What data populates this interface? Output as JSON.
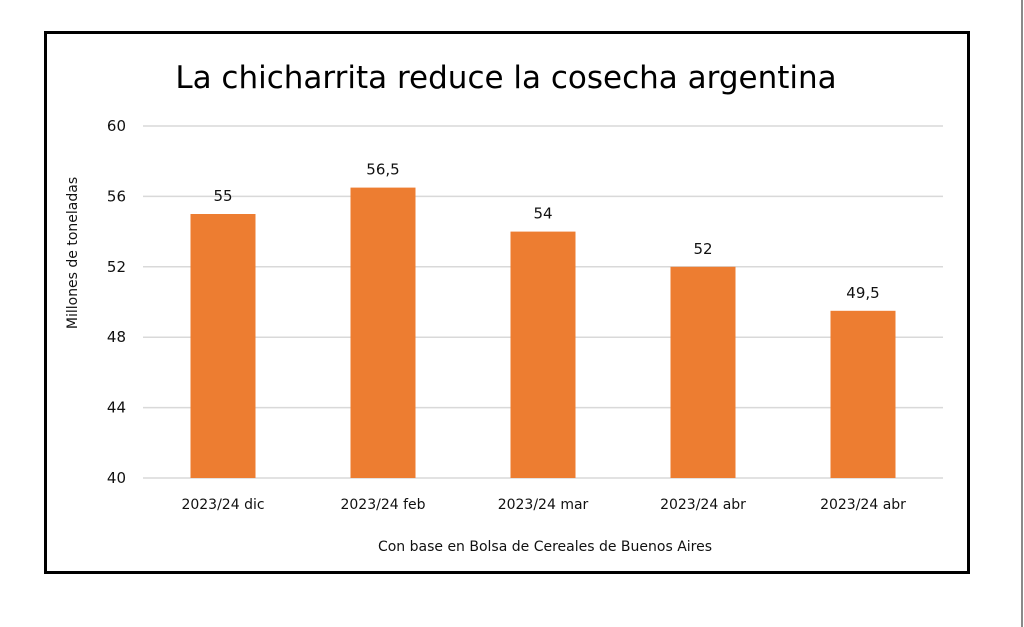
{
  "chart_data": {
    "type": "bar",
    "title": "La chicharrita reduce la cosecha argentina",
    "xlabel": "Con base en Bolsa de Cereales de Buenos Aires",
    "ylabel": "Millones de toneladas",
    "categories": [
      "2023/24 dic",
      "2023/24 feb",
      "2023/24 mar",
      "2023/24 abr",
      "2023/24 abr"
    ],
    "values": [
      55,
      56.5,
      54,
      52,
      49.5
    ],
    "data_labels": [
      "55",
      "56,5",
      "54",
      "52",
      "49,5"
    ],
    "ylim": [
      40,
      60
    ],
    "yticks": [
      40,
      44,
      48,
      52,
      56,
      60
    ],
    "ytick_labels": [
      "40",
      "44",
      "48",
      "52",
      "56",
      "60"
    ],
    "grid": true,
    "legend": "none",
    "bar_color": "#ED7D31",
    "grid_color": "#D9D9D9"
  }
}
